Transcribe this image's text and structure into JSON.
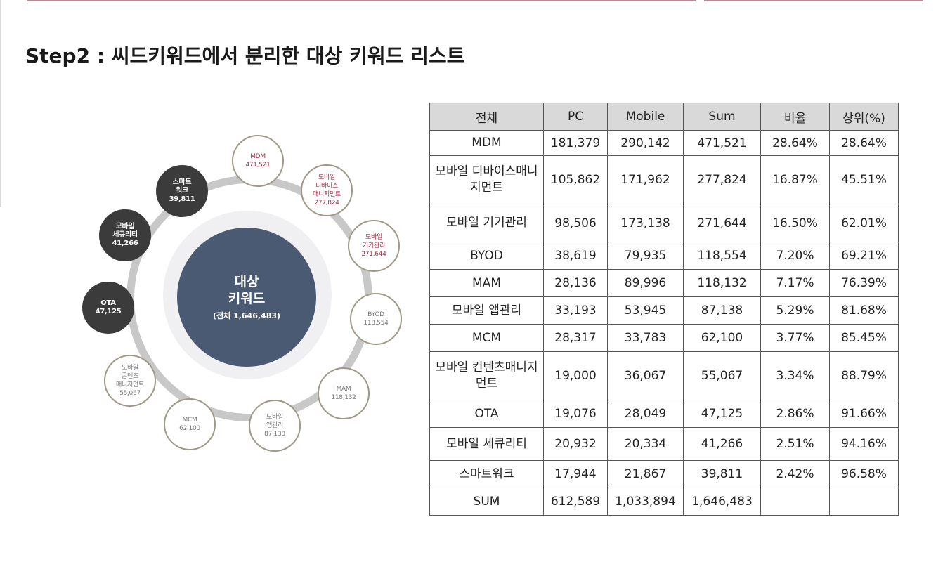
{
  "title": "Step2 :  씨드키워드에서 분리한 대상 키워드 리스트",
  "diagram": {
    "center": {
      "line1": "대상",
      "line2": "키워드",
      "total": "(전체 1,646,483)"
    },
    "nodes": [
      {
        "lines": [
          "MDM",
          "471,521"
        ],
        "style": "light-red"
      },
      {
        "lines": [
          "모바일",
          "디바이스",
          "매니지먼트",
          "277,824"
        ],
        "style": "light-red"
      },
      {
        "lines": [
          "모바일",
          "기기관리",
          "271,644"
        ],
        "style": "light-red"
      },
      {
        "lines": [
          "BYOD",
          "118,554"
        ],
        "style": "light"
      },
      {
        "lines": [
          "MAM",
          "118,132"
        ],
        "style": "light"
      },
      {
        "lines": [
          "모바일",
          "앱관리",
          "87,138"
        ],
        "style": "light"
      },
      {
        "lines": [
          "MCM",
          "62,100"
        ],
        "style": "light"
      },
      {
        "lines": [
          "모바일",
          "콘텐츠",
          "매니지먼트",
          "55,067"
        ],
        "style": "light"
      },
      {
        "lines": [
          "OTA",
          "47,125"
        ],
        "style": "dark"
      },
      {
        "lines": [
          "모바일",
          "세큐리티",
          "41,266"
        ],
        "style": "dark"
      },
      {
        "lines": [
          "스마트",
          "워크",
          "39,811"
        ],
        "style": "dark"
      }
    ]
  },
  "table": {
    "headers": [
      "전체",
      "PC",
      "Mobile",
      "Sum",
      "비율",
      "상위(%)"
    ],
    "rows": [
      [
        "MDM",
        "181,379",
        "290,142",
        "471,521",
        "28.64%",
        "28.64%"
      ],
      [
        "모바일 디바이스매니지먼트",
        "105,862",
        "171,962",
        "277,824",
        "16.87%",
        "45.51%"
      ],
      [
        "모바일 기기관리",
        "98,506",
        "173,138",
        "271,644",
        "16.50%",
        "62.01%"
      ],
      [
        "BYOD",
        "38,619",
        "79,935",
        "118,554",
        "7.20%",
        "69.21%"
      ],
      [
        "MAM",
        "28,136",
        "89,996",
        "118,132",
        "7.17%",
        "76.39%"
      ],
      [
        "모바일 앱관리",
        "33,193",
        "53,945",
        "87,138",
        "5.29%",
        "81.68%"
      ],
      [
        "MCM",
        "28,317",
        "33,783",
        "62,100",
        "3.77%",
        "85.45%"
      ],
      [
        "모바일 컨텐츠매니지먼트",
        "19,000",
        "36,067",
        "55,067",
        "3.34%",
        "88.79%"
      ],
      [
        "OTA",
        "19,076",
        "28,049",
        "47,125",
        "2.86%",
        "91.66%"
      ],
      [
        "모바일 세큐리티",
        "20,932",
        "20,334",
        "41,266",
        "2.51%",
        "94.16%"
      ],
      [
        "스마트워크",
        "17,944",
        "21,867",
        "39,811",
        "2.42%",
        "96.58%"
      ],
      [
        "SUM",
        "612,589",
        "1,033,894",
        "1,646,483",
        "",
        ""
      ]
    ]
  }
}
